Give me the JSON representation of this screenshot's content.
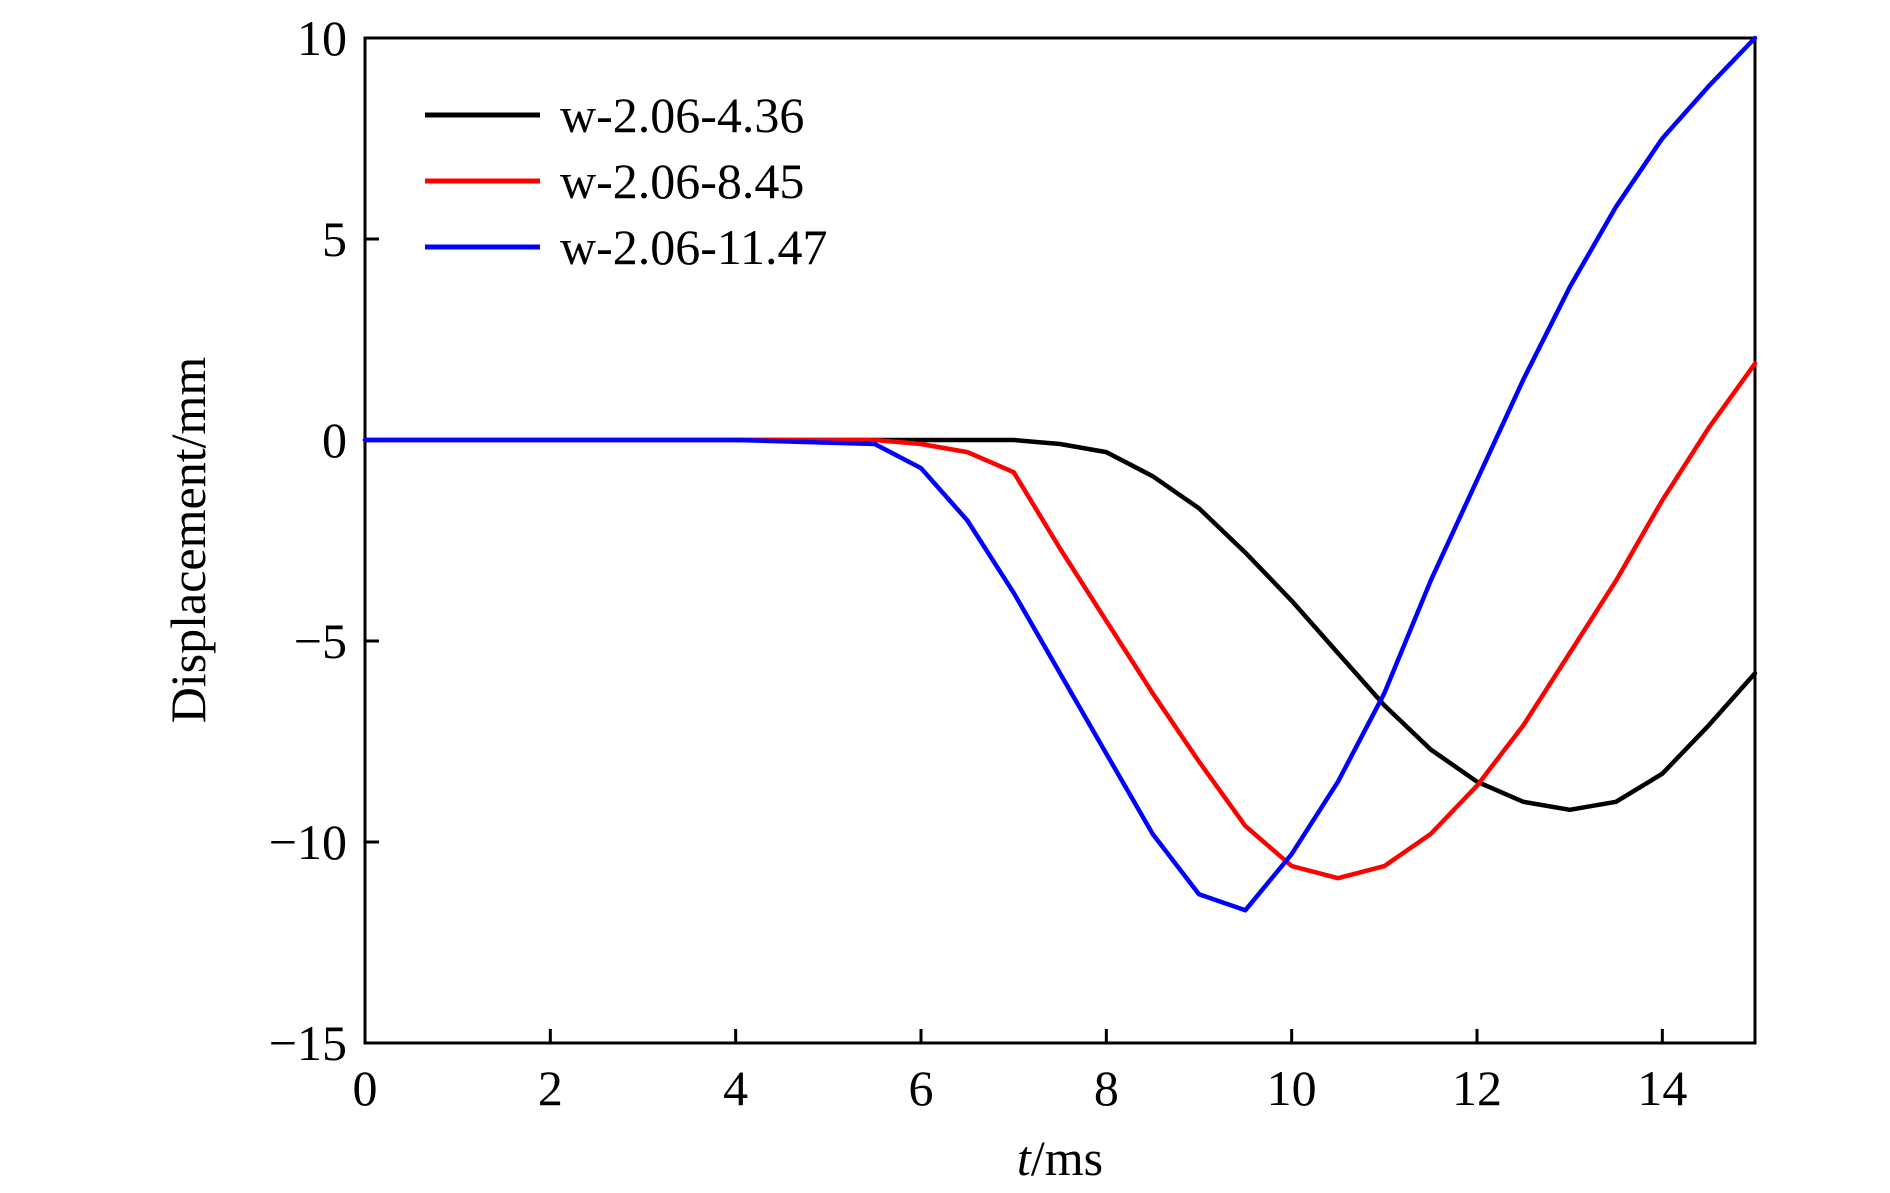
{
  "chart_data": {
    "type": "line",
    "title": "",
    "xlabel_italic": "t",
    "xlabel_rest": "/ms",
    "ylabel": "Displacement/mm",
    "xlim": [
      0,
      15
    ],
    "ylim": [
      -15,
      10
    ],
    "xticks": [
      0,
      2,
      4,
      6,
      8,
      10,
      12,
      14
    ],
    "yticks": [
      10,
      5,
      0,
      -5,
      -10,
      -15
    ],
    "xtick_labels": [
      "0",
      "2",
      "4",
      "6",
      "8",
      "10",
      "12",
      "14"
    ],
    "ytick_labels": [
      "10",
      "5",
      "0",
      "−5",
      "−10",
      "−15"
    ],
    "grid": false,
    "legend_position": "top-left",
    "series": [
      {
        "name": "w-2.06-4.36",
        "color": "#000000",
        "x": [
          0,
          2,
          4,
          6,
          7,
          7.5,
          8,
          8.5,
          9,
          9.5,
          10,
          10.5,
          11,
          11.5,
          12,
          12.5,
          13,
          13.5,
          14,
          14.5,
          15
        ],
        "y": [
          0,
          0,
          0,
          0,
          0,
          -0.1,
          -0.3,
          -0.9,
          -1.7,
          -2.8,
          -4.0,
          -5.3,
          -6.6,
          -7.7,
          -8.5,
          -9.0,
          -9.2,
          -9.0,
          -8.3,
          -7.1,
          -5.8
        ]
      },
      {
        "name": "w-2.06-8.45",
        "color": "#ff0000",
        "x": [
          0,
          2,
          4,
          5.5,
          6,
          6.5,
          7,
          7.5,
          8,
          8.5,
          9,
          9.5,
          10,
          10.5,
          11,
          11.5,
          12,
          12.5,
          13,
          13.5,
          14,
          14.5,
          15
        ],
        "y": [
          0,
          0,
          0,
          0,
          -0.1,
          -0.3,
          -0.8,
          -2.7,
          -4.5,
          -6.3,
          -8.0,
          -9.6,
          -10.6,
          -10.9,
          -10.6,
          -9.8,
          -8.6,
          -7.1,
          -5.3,
          -3.5,
          -1.5,
          0.3,
          1.9
        ]
      },
      {
        "name": "w-2.06-11.47",
        "color": "#0000ff",
        "x": [
          0,
          2,
          4,
          5.5,
          6,
          6.5,
          7,
          7.5,
          8,
          8.5,
          9,
          9.5,
          10,
          10.5,
          11,
          11.5,
          12,
          12.5,
          13,
          13.5,
          14,
          14.5,
          15
        ],
        "y": [
          0,
          0,
          0,
          -0.1,
          -0.7,
          -2.0,
          -3.8,
          -5.8,
          -7.8,
          -9.8,
          -11.3,
          -11.7,
          -10.3,
          -8.5,
          -6.3,
          -3.5,
          -1.0,
          1.5,
          3.8,
          5.8,
          7.5,
          8.8,
          10.0
        ]
      }
    ]
  }
}
